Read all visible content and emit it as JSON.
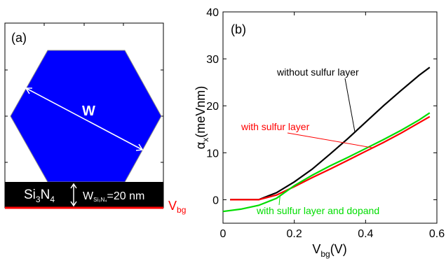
{
  "panel_a": {
    "label": "(a)",
    "width_label": "W",
    "substrate": {
      "name": "Si",
      "sub1": "3",
      "name2": "N",
      "sub2": "4"
    },
    "thickness": {
      "prefix": "W",
      "subscript": "Si₃N₄",
      "value": "=20 nm"
    },
    "gate": {
      "name": "V",
      "subscript": "bg"
    },
    "colors": {
      "hexagon": "#0000ff",
      "substrate": "#000000",
      "gate": "#ff0000",
      "arrow": "#ffffff"
    }
  },
  "chart_data": {
    "type": "line",
    "panel_label": "(b)",
    "xlabel": {
      "main": "V",
      "sub": "bg",
      "unit": "(V)"
    },
    "ylabel": {
      "main": "α",
      "sub": "x",
      "unit": "(meVnm)"
    },
    "xlim": [
      0,
      0.6
    ],
    "ylim": [
      -5,
      40
    ],
    "xticks": [
      "0",
      "0.2",
      "0.4",
      "0.6"
    ],
    "xtick_values": [
      0,
      0.2,
      0.4,
      0.6
    ],
    "yticks": [
      "0",
      "10",
      "20",
      "30",
      "40"
    ],
    "ytick_values": [
      0,
      10,
      20,
      30,
      40
    ],
    "series": [
      {
        "name": "without sulfur layer",
        "color": "#000000",
        "x": [
          0.02,
          0.1,
          0.15,
          0.2,
          0.25,
          0.3,
          0.35,
          0.4,
          0.45,
          0.5,
          0.55,
          0.58
        ],
        "y": [
          0,
          0,
          1.5,
          3.8,
          6.5,
          9.7,
          13,
          16.5,
          20,
          23.3,
          26.5,
          28.2
        ]
      },
      {
        "name": "with sulfur layer",
        "color": "#ff0000",
        "x": [
          0.02,
          0.1,
          0.15,
          0.2,
          0.25,
          0.3,
          0.35,
          0.4,
          0.45,
          0.5,
          0.55,
          0.58
        ],
        "y": [
          0,
          0,
          1,
          2.8,
          4.7,
          6.5,
          8.4,
          10.3,
          12.2,
          14.2,
          16.4,
          17.7
        ]
      },
      {
        "name": "with sulfur layer and dopand",
        "color": "#00dd00",
        "x": [
          0.0,
          0.05,
          0.1,
          0.15,
          0.2,
          0.25,
          0.3,
          0.35,
          0.4,
          0.45,
          0.5,
          0.55,
          0.58
        ],
        "y": [
          -2.5,
          -2,
          -1.2,
          0.3,
          3,
          5.2,
          7.2,
          9,
          10.9,
          12.8,
          14.8,
          17,
          18.5
        ]
      }
    ],
    "annotations": [
      {
        "text": "without sulfur layer",
        "series": 0,
        "at_x": 0.37,
        "color": "#000000"
      },
      {
        "text": "with sulfur layer",
        "series": 1,
        "at_x": 0.42,
        "color": "#ff0000"
      },
      {
        "text": "with sulfur layer and dopand",
        "series": 2,
        "at_x": 0.16,
        "color": "#00dd00"
      }
    ]
  }
}
